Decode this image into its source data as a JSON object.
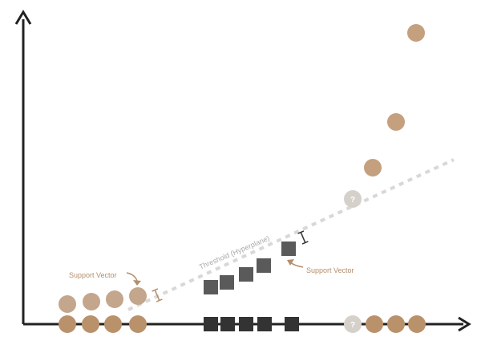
{
  "diagram": {
    "threshold_label": "Threshold (Hyperplane)",
    "support_vector_left_label": "Support Vector",
    "support_vector_right_label": "Support Vector",
    "unknown_marker_label": "?"
  },
  "colors": {
    "axis": "#222222",
    "class_circle_strong": "#b9916b",
    "class_circle_light": "#c3a68b",
    "class_circle_upper": "#c5a07e",
    "class_square_dark": "#333333",
    "class_square_mid": "#5a5a5a",
    "unknown_point": "#d6d0cb",
    "threshold_line": "#d8d8d8",
    "annotation": "#b48e6c",
    "margin_marker_left": "#b48e6c",
    "margin_marker_right": "#333333"
  },
  "icons": {
    "axis_arrows": "arrowhead-icon",
    "support_vector_pointers": "curved-arrow-icon",
    "margin_markers": "i-beam-icon"
  }
}
